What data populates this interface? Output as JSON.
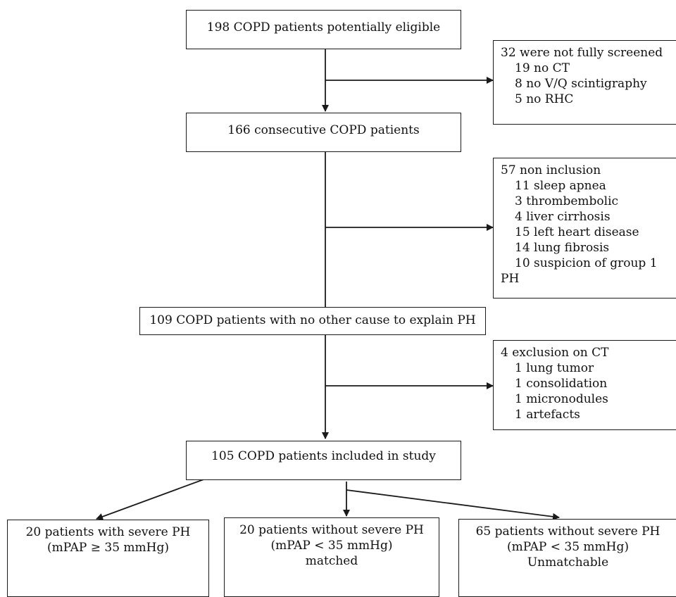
{
  "colors": {
    "stroke": "#1a1a1a",
    "text": "#111111",
    "background": "#ffffff"
  },
  "boxes": {
    "eligible": {
      "lines": [
        "198 COPD patients potentially eligible"
      ]
    },
    "consecutive": {
      "lines": [
        "166 consecutive COPD patients"
      ]
    },
    "no_other_cause": {
      "lines": [
        "109 COPD patients with no other cause to explain PH"
      ]
    },
    "included": {
      "lines": [
        "105 COPD patients included in study"
      ]
    },
    "not_screened": {
      "lines": [
        "32 were not fully screened",
        "19 no CT",
        "8 no V/Q scintigraphy",
        "5 no RHC"
      ]
    },
    "non_inclusion": {
      "lines": [
        "57 non inclusion",
        "11 sleep apnea",
        "3 thrombembolic",
        "4 liver cirrhosis",
        "15 left heart disease",
        "14 lung fibrosis",
        "10 suspicion of group 1",
        "PH"
      ]
    },
    "exclusion_ct": {
      "lines": [
        "4 exclusion on CT",
        "1 lung tumor",
        "1 consolidation",
        "1 micronodules",
        "1 artefacts"
      ]
    },
    "severe_ph": {
      "lines": [
        "20 patients with severe PH",
        "(mPAP ≥ 35 mmHg)"
      ]
    },
    "matched": {
      "lines": [
        "20 patients without severe PH",
        "(mPAP < 35 mmHg)",
        "matched"
      ]
    },
    "unmatchable": {
      "lines": [
        "65 patients without severe PH",
        "(mPAP < 35 mmHg)",
        "Unmatchable"
      ]
    }
  }
}
